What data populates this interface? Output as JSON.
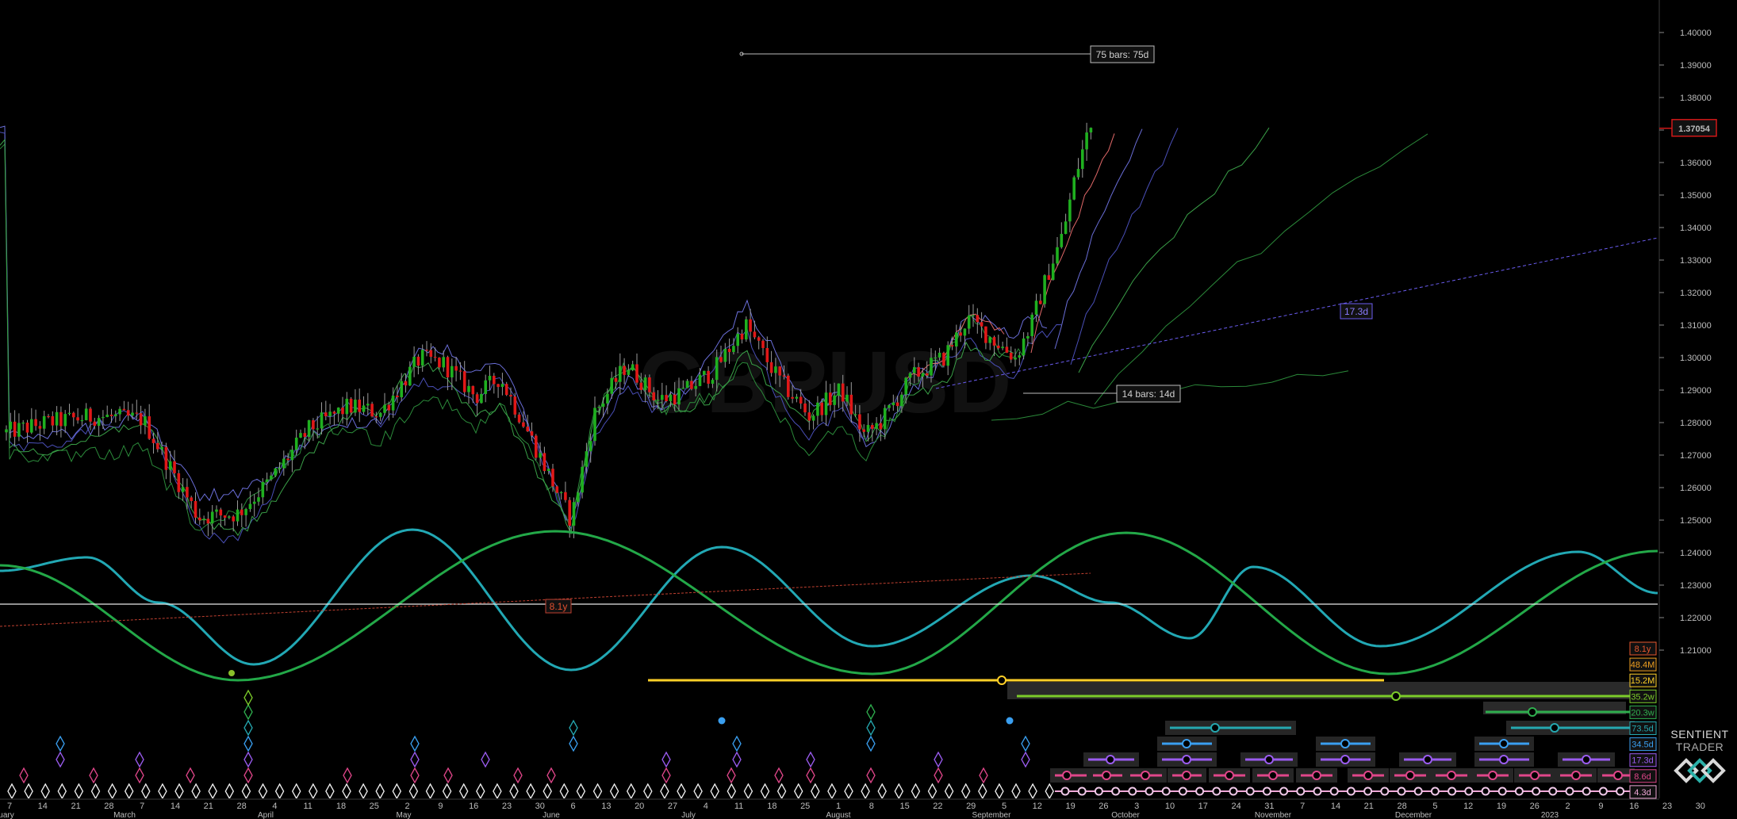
{
  "chart_data": {
    "type": "candlestick",
    "price_axis": {
      "ticks": [
        "1.40000",
        "1.39000",
        "1.38000",
        "1.37000",
        "1.36000",
        "1.35000",
        "1.34000",
        "1.33000",
        "1.32000",
        "1.31000",
        "1.30000",
        "1.29000",
        "1.28000",
        "1.27000",
        "1.26000",
        "1.25000",
        "1.24000",
        "1.23000",
        "1.22000",
        "1.21000"
      ],
      "current_price": "1.37054"
    },
    "date_axis": {
      "day_ticks": [
        "7",
        "14",
        "21",
        "28",
        "7",
        "14",
        "21",
        "28",
        "4",
        "11",
        "18",
        "25",
        "2",
        "9",
        "16",
        "23",
        "30",
        "6",
        "13",
        "20",
        "27",
        "4",
        "11",
        "18",
        "25",
        "1",
        "8",
        "15",
        "22",
        "29",
        "5",
        "12",
        "19",
        "26",
        "3",
        "10",
        "17",
        "24",
        "31",
        "7",
        "14",
        "21",
        "28",
        "5",
        "12",
        "19",
        "26",
        "2",
        "9",
        "16",
        "23",
        "30"
      ],
      "month_ticks": [
        "uary",
        "March",
        "April",
        "May",
        "June",
        "July",
        "August",
        "September",
        "October",
        "November",
        "December",
        "2023"
      ]
    },
    "annotations": {
      "bars_75": "75 bars: 75d",
      "bars_14": "14 bars: 14d",
      "cycle_17_3": "17.3d",
      "cycle_8_1": "8.1y"
    },
    "cycle_legend": [
      {
        "label": "8.1y",
        "color": "#e8572e"
      },
      {
        "label": "48.4M",
        "color": "#f0a020"
      },
      {
        "label": "15.2M",
        "color": "#ffd028"
      },
      {
        "label": "35.2w",
        "color": "#7ccc2a"
      },
      {
        "label": "20.3w",
        "color": "#2fae4e"
      },
      {
        "label": "73.5d",
        "color": "#25a8b0"
      },
      {
        "label": "34.5d",
        "color": "#3a9ff0"
      },
      {
        "label": "17.3d",
        "color": "#9b5cf0"
      },
      {
        "label": "8.6d",
        "color": "#e0468a"
      },
      {
        "label": "4.3d",
        "color": "#f0a8d8"
      }
    ],
    "cycle_wave_colors": {
      "wave_a": "#22a8b4",
      "wave_b": "#23a848"
    }
  },
  "brand": {
    "line1": "SENTIENT",
    "line2": "TRADER"
  }
}
